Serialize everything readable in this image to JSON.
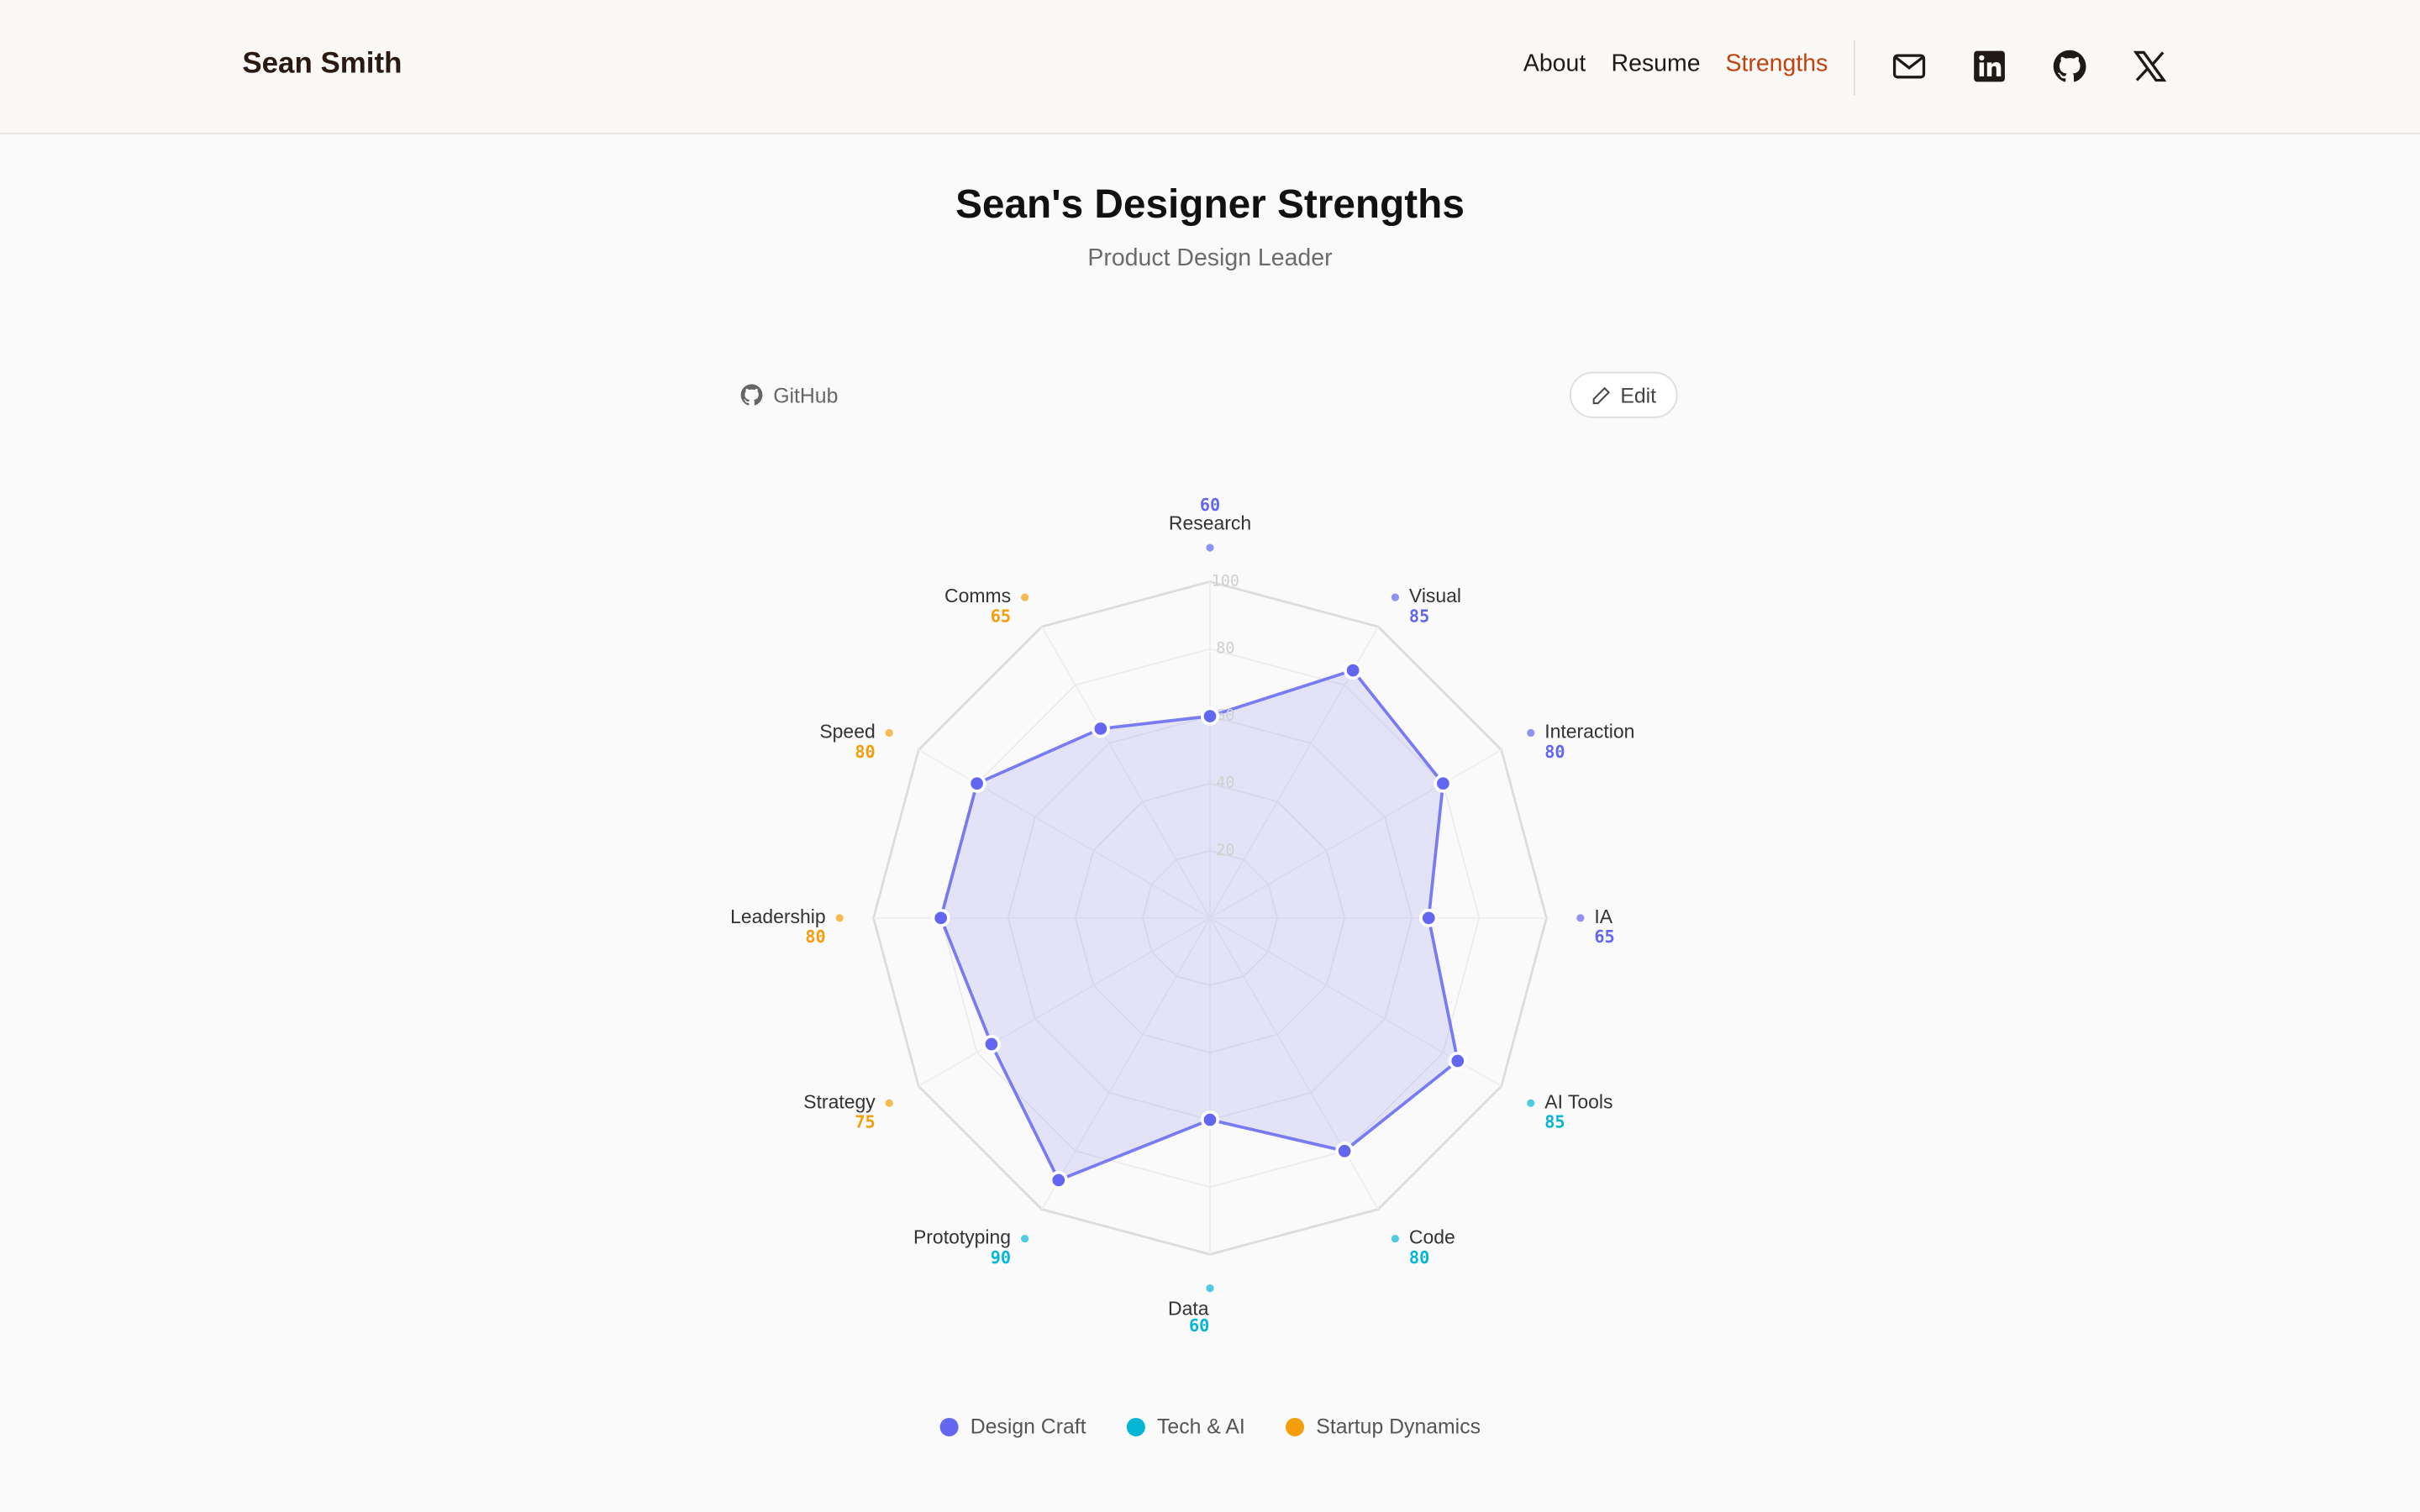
{
  "header": {
    "name": "Sean Smith",
    "nav": [
      "About",
      "Resume",
      "Strengths"
    ]
  },
  "page": {
    "title": "Sean's Designer Strengths",
    "subtitle": "Product Design Leader",
    "github_link": "GitHub",
    "edit_button": "Edit"
  },
  "chart_data": {
    "type": "radar",
    "categories": [
      "Research",
      "Visual",
      "Interaction",
      "IA",
      "AI Tools",
      "Code",
      "Data",
      "Prototyping",
      "Strategy",
      "Leadership",
      "Speed",
      "Comms"
    ],
    "values": [
      60,
      85,
      80,
      65,
      85,
      80,
      60,
      90,
      75,
      80,
      80,
      65
    ],
    "label_colors": [
      "#6366f1",
      "#6366f1",
      "#6366f1",
      "#6366f1",
      "#06b6d4",
      "#06b6d4",
      "#06b6d4",
      "#06b6d4",
      "#f59e0b",
      "#f59e0b",
      "#f59e0b",
      "#f59e0b"
    ],
    "color": "#6366f1",
    "rlim": [
      0,
      100
    ],
    "rticks": [
      20,
      40,
      60,
      80,
      100
    ],
    "grid": true,
    "legend": [
      {
        "name": "Design Craft",
        "color": "#6366f1"
      },
      {
        "name": "Tech & AI",
        "color": "#06b6d4"
      },
      {
        "name": "Startup Dynamics",
        "color": "#f59e0b"
      }
    ]
  }
}
